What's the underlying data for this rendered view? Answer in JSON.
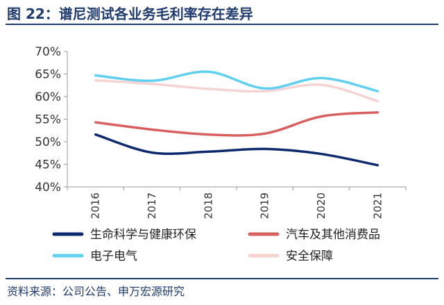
{
  "header": {
    "title": "图 22：谱尼测试各业务毛利率存在差异"
  },
  "footer": {
    "source": "资料来源：公司公告、申万宏源研究"
  },
  "chart_data": {
    "type": "line",
    "title": "",
    "xlabel": "",
    "ylabel": "",
    "x": [
      "2016",
      "2017",
      "2018",
      "2019",
      "2020",
      "2021"
    ],
    "ylim": [
      40,
      70
    ],
    "yticks": [
      "40%",
      "45%",
      "50%",
      "55%",
      "60%",
      "65%",
      "70%"
    ],
    "grid": false,
    "legend_position": "bottom",
    "series": [
      {
        "name": "生命科学与健康环保",
        "color": "#0d2a6e",
        "values": [
          51.6,
          47.6,
          47.8,
          48.4,
          47.3,
          44.8
        ]
      },
      {
        "name": "汽车及其他消费品",
        "color": "#d95f5f",
        "values": [
          54.3,
          52.7,
          51.6,
          51.8,
          55.6,
          56.5
        ]
      },
      {
        "name": "电子电气",
        "color": "#5fd0f0",
        "values": [
          64.7,
          63.5,
          65.5,
          61.8,
          64.1,
          61.2
        ]
      },
      {
        "name": "安全保障",
        "color": "#f5d3d3",
        "values": [
          63.6,
          62.8,
          61.7,
          61.2,
          62.6,
          59.0
        ]
      }
    ]
  }
}
